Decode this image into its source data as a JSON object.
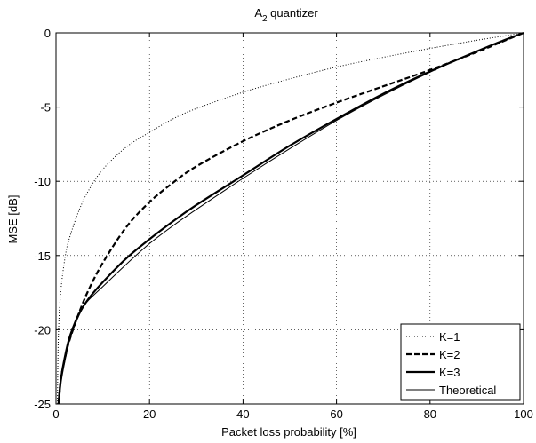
{
  "chart_data": {
    "type": "line",
    "title": "A",
    "title_subscript": "2",
    "title_suffix": " quantizer",
    "xlabel": "Packet loss probability [%]",
    "ylabel": "MSE [dB]",
    "xlim": [
      0,
      100
    ],
    "ylim": [
      -25,
      0
    ],
    "xticks": [
      0,
      20,
      40,
      60,
      80,
      100
    ],
    "yticks": [
      0,
      -5,
      -10,
      -15,
      -20,
      -25
    ],
    "grid": true,
    "legend_position": "bottom-right",
    "series": [
      {
        "name": "K=1",
        "style": "dotted",
        "x": [
          0.3,
          0.5,
          1,
          2,
          3,
          5,
          7,
          10,
          15,
          20,
          25,
          30,
          40,
          50,
          60,
          70,
          80,
          90,
          95,
          100
        ],
        "y": [
          -25,
          -20.5,
          -17.5,
          -15.0,
          -13.7,
          -11.9,
          -10.6,
          -9.2,
          -7.7,
          -6.7,
          -5.8,
          -5.1,
          -4.0,
          -3.1,
          -2.3,
          -1.65,
          -1.05,
          -0.5,
          -0.25,
          0
        ]
      },
      {
        "name": "K=2",
        "style": "dashed",
        "x": [
          0.6,
          1,
          2,
          3,
          5,
          7,
          10,
          15,
          20,
          25,
          30,
          40,
          50,
          60,
          70,
          80,
          90,
          95,
          100
        ],
        "y": [
          -25,
          -23.4,
          -21.8,
          -20.6,
          -18.8,
          -17.3,
          -15.5,
          -13.1,
          -11.4,
          -10.1,
          -9.0,
          -7.3,
          -5.9,
          -4.7,
          -3.6,
          -2.5,
          -1.3,
          -0.65,
          0
        ]
      },
      {
        "name": "K=3",
        "style": "solid-thick",
        "x": [
          0.6,
          1,
          2,
          3,
          5,
          7,
          10,
          15,
          20,
          25,
          30,
          40,
          50,
          60,
          70,
          80,
          90,
          95,
          100
        ],
        "y": [
          -25,
          -23.5,
          -21.8,
          -20.5,
          -18.9,
          -17.9,
          -16.8,
          -15.2,
          -13.9,
          -12.7,
          -11.6,
          -9.6,
          -7.6,
          -5.8,
          -4.1,
          -2.6,
          -1.25,
          -0.6,
          0
        ]
      },
      {
        "name": "Theoretical",
        "style": "solid-thin",
        "x": [
          0.4,
          1,
          2,
          3,
          5,
          7,
          10,
          15,
          20,
          25,
          30,
          40,
          50,
          60,
          70,
          80,
          90,
          95,
          100
        ],
        "y": [
          -25,
          -23.2,
          -21.5,
          -20.3,
          -18.8,
          -18.0,
          -17.1,
          -15.6,
          -14.2,
          -13.0,
          -11.9,
          -9.8,
          -7.8,
          -5.9,
          -4.2,
          -2.65,
          -1.25,
          -0.6,
          0
        ]
      }
    ]
  }
}
